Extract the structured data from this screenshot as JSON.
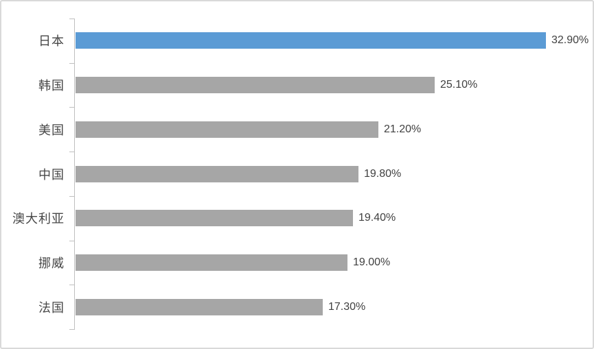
{
  "chart_data": {
    "type": "bar",
    "orientation": "horizontal",
    "categories": [
      "日本",
      "韩国",
      "美国",
      "中国",
      "澳大利亚",
      "挪威",
      "法国"
    ],
    "values": [
      32.9,
      25.1,
      21.2,
      19.8,
      19.4,
      19.0,
      17.3
    ],
    "value_labels": [
      "32.90%",
      "25.10%",
      "21.20%",
      "19.80%",
      "19.40%",
      "19.00%",
      "17.30%"
    ],
    "highlight_index": 0,
    "highlight_color": "#5b9bd5",
    "bar_color": "#a6a6a6",
    "value_label_color": "#404040",
    "category_label_color": "#474747",
    "axis_color": "#bfbfbf",
    "xlim": [
      0,
      35
    ],
    "grid": false,
    "legend": false,
    "data_labels": true
  }
}
